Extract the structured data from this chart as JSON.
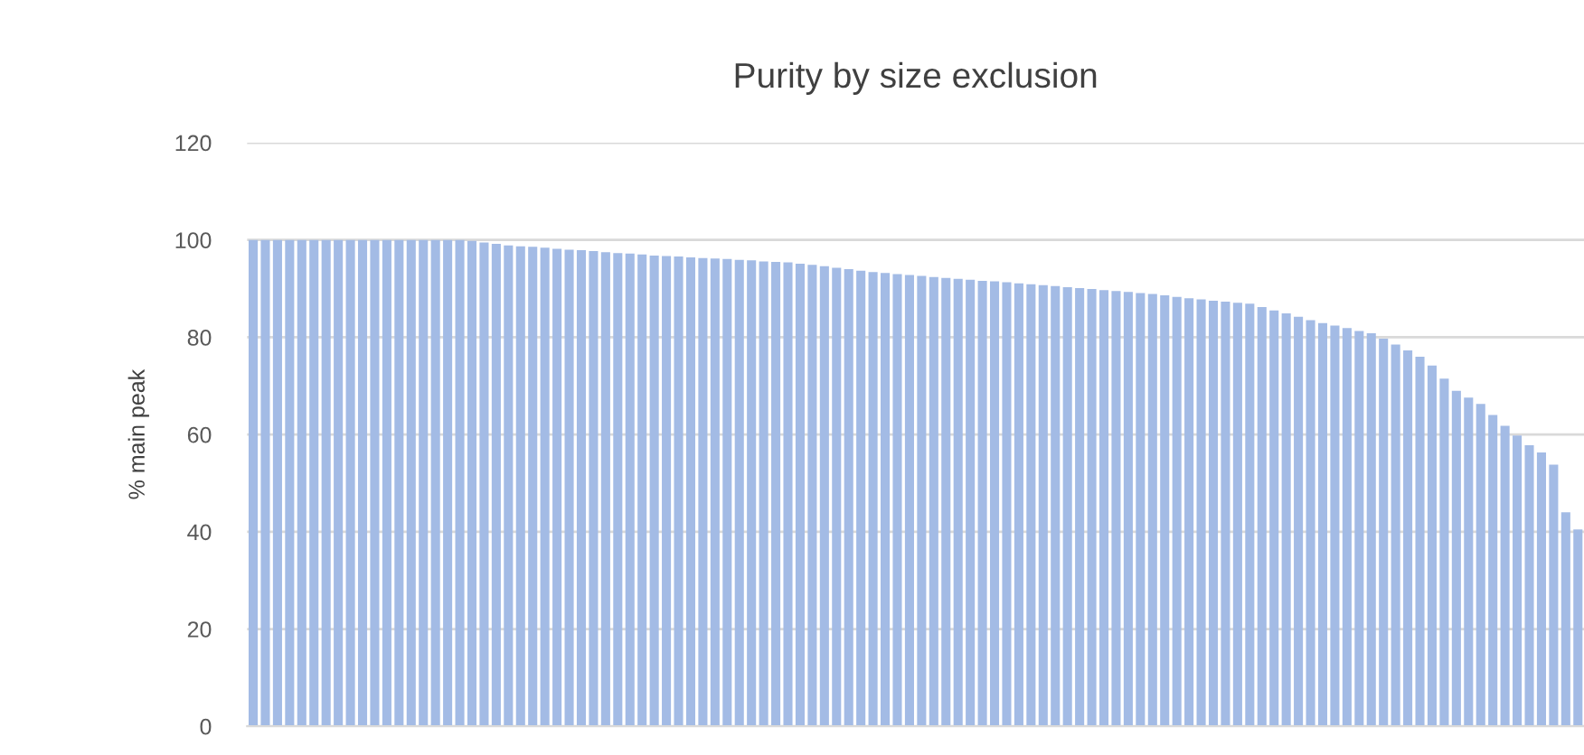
{
  "chart_data": {
    "type": "bar",
    "title": "Purity by size exclusion",
    "ylabel": "% main peak",
    "categories": [
      null,
      null,
      null,
      null,
      null,
      null,
      null,
      null,
      null,
      null,
      null,
      null,
      null,
      null,
      null,
      null,
      null,
      null,
      null,
      null,
      null,
      null,
      null,
      null,
      null,
      null,
      null,
      null,
      null,
      null,
      null,
      null,
      null,
      null,
      null,
      null,
      null,
      null,
      null,
      null,
      null,
      null,
      null,
      null,
      null,
      null,
      null,
      null,
      null,
      null,
      null,
      null,
      null,
      null,
      null,
      null,
      null,
      null,
      null,
      null,
      null,
      null,
      null,
      null,
      null,
      null,
      null,
      null,
      null,
      null,
      null,
      null,
      null,
      null,
      null,
      null,
      null,
      null,
      null,
      null,
      null,
      null,
      null,
      null,
      null,
      null,
      null,
      null,
      null,
      null,
      null,
      null,
      null,
      null,
      null,
      null,
      null,
      null,
      null,
      null,
      null,
      null,
      null,
      null,
      null,
      null,
      null,
      null,
      null,
      null
    ],
    "values": [
      100,
      100,
      100,
      100,
      100,
      100,
      100,
      100,
      100,
      100,
      100,
      100,
      100,
      100,
      100,
      100,
      100,
      100,
      99.8,
      99.5,
      99.2,
      98.9,
      98.7,
      98.6,
      98.4,
      98.2,
      98.0,
      97.9,
      97.7,
      97.5,
      97.3,
      97.2,
      97.0,
      96.8,
      96.7,
      96.6,
      96.4,
      96.3,
      96.2,
      96.1,
      95.9,
      95.8,
      95.6,
      95.5,
      95.4,
      95.1,
      94.9,
      94.6,
      94.3,
      94.0,
      93.7,
      93.4,
      93.2,
      93.0,
      92.8,
      92.6,
      92.4,
      92.2,
      92.0,
      91.8,
      91.6,
      91.5,
      91.3,
      91.1,
      90.9,
      90.7,
      90.5,
      90.3,
      90.1,
      89.9,
      89.7,
      89.5,
      89.3,
      89.1,
      88.9,
      88.6,
      88.3,
      88.0,
      87.8,
      87.5,
      87.3,
      87.1,
      86.9,
      86.2,
      85.5,
      84.9,
      84.2,
      83.5,
      82.9,
      82.4,
      81.9,
      81.3,
      80.8,
      79.7,
      78.5,
      77.3,
      76.0,
      74.2,
      71.5,
      69.0,
      67.6,
      66.3,
      64.0,
      61.8,
      59.8,
      57.8,
      56.3,
      53.8,
      44.0,
      40.5
    ],
    "color": "#a3bbe5",
    "ylim": [
      0,
      120
    ],
    "yticks": [
      0,
      20,
      40,
      60,
      80,
      100,
      120
    ],
    "grid": "y",
    "tick_labels": "y"
  }
}
